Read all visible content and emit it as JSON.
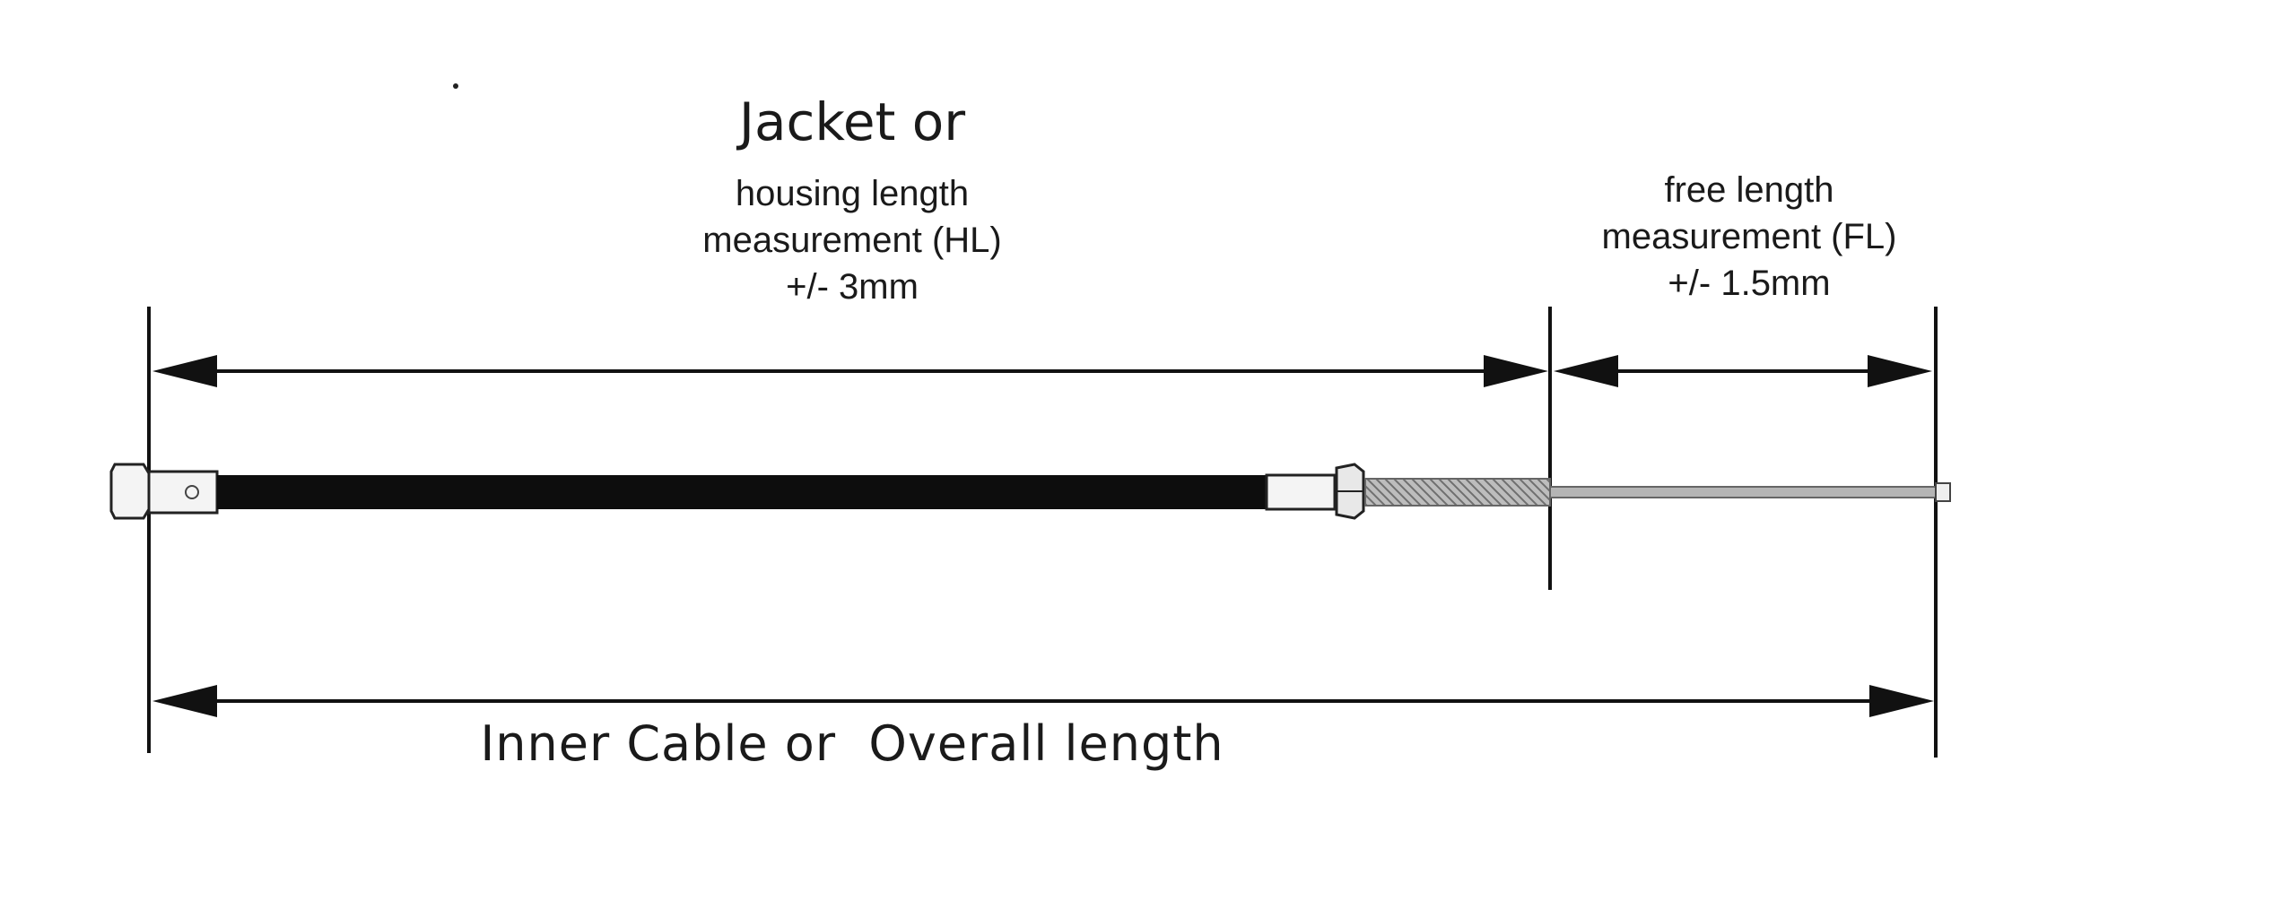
{
  "labels": {
    "housing": {
      "title": "Jacket or",
      "line1": "housing length",
      "line2": "measurement (HL)",
      "line3": "+/- 3mm"
    },
    "free": {
      "line1": "free length",
      "line2": "measurement (FL)",
      "line3": "+/- 1.5mm"
    },
    "overall": "Inner Cable or  Overall length"
  },
  "colors": {
    "line": "#111111",
    "housing": "#0d0d0d",
    "fitting": "#f2f2f2",
    "threads": "#9a9a9a",
    "inner_cable": "#b5b5b5"
  }
}
